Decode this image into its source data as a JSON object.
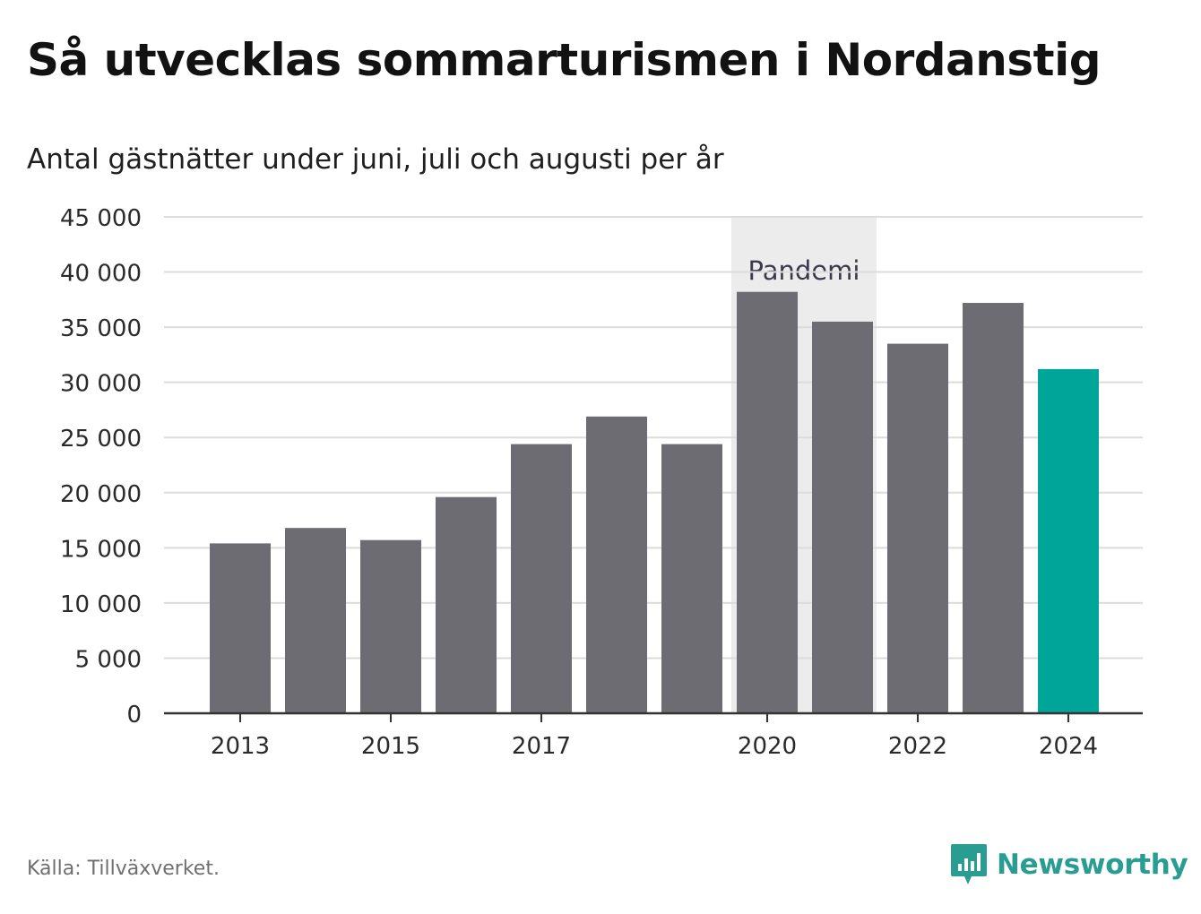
{
  "title": "Så utvecklas sommarturismen i Nordanstig",
  "subtitle": "Antal gästnätter under juni, juli och augusti per år",
  "source": "Källa: Tillväxverket.",
  "brand": {
    "name": "Newsworthy",
    "icon": "newsworthy-logo-icon",
    "color": "#2a9d93"
  },
  "chart_data": {
    "type": "bar",
    "categories": [
      "2013",
      "2014",
      "2015",
      "2016",
      "2017",
      "2018",
      "2019",
      "2020",
      "2021",
      "2022",
      "2023",
      "2024"
    ],
    "values": [
      15400,
      16800,
      15700,
      19600,
      24400,
      26900,
      24400,
      38200,
      35500,
      33500,
      37200,
      31200
    ],
    "x_tick_labels": [
      "2013",
      "2015",
      "2017",
      "2020",
      "2022",
      "2024"
    ],
    "y_ticks": [
      0,
      5000,
      10000,
      15000,
      20000,
      25000,
      30000,
      35000,
      40000,
      45000
    ],
    "y_tick_labels": [
      "0",
      "5 000",
      "10 000",
      "15 000",
      "20 000",
      "25 000",
      "30 000",
      "35 000",
      "40 000",
      "45 000"
    ],
    "ylim": [
      0,
      45000
    ],
    "grid": true,
    "colors": {
      "default": "#6d6c72",
      "highlight": "#00a59a",
      "band": "#ececec",
      "grid": "#dcdcdc",
      "axis": "#333333"
    },
    "highlight_category": "2024",
    "annotation": {
      "label": "Pandemi",
      "from": "2020",
      "to": "2021"
    }
  }
}
